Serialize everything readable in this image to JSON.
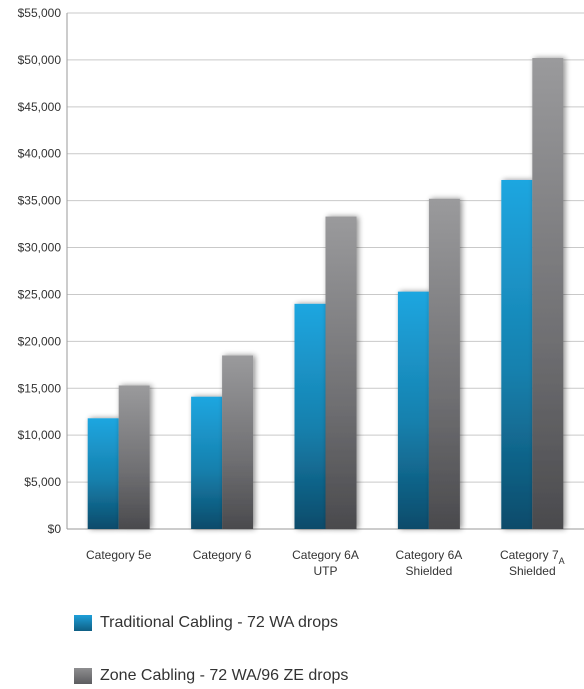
{
  "chart_data": {
    "type": "bar",
    "categories": [
      {
        "line1": "Category 5e",
        "line2": ""
      },
      {
        "line1": "Category 6",
        "line2": ""
      },
      {
        "line1": "Category 6A",
        "line2": "UTP"
      },
      {
        "line1": "Category 6A",
        "line2": "Shielded"
      },
      {
        "line1": "Category 7",
        "sub": "A",
        "line2": "Shielded"
      }
    ],
    "series": [
      {
        "name": "Traditional Cabling - 72 WA drops",
        "color": "#1e9fd9",
        "values": [
          11800,
          14100,
          24000,
          25300,
          37200
        ]
      },
      {
        "name": "Zone Cabling - 72 WA/96 ZE drops",
        "color": "#8e8e90",
        "values": [
          15300,
          18500,
          33300,
          35200,
          50200
        ]
      }
    ],
    "ylim": [
      0,
      55000
    ],
    "yticks": [
      "$0",
      "$5,000",
      "$10,000",
      "$15,000",
      "$20,000",
      "$25,000",
      "$30,000",
      "$35,000",
      "$40,000",
      "$45,000",
      "$50,000",
      "$55,000"
    ],
    "grid": true,
    "legend_position": "bottom"
  }
}
